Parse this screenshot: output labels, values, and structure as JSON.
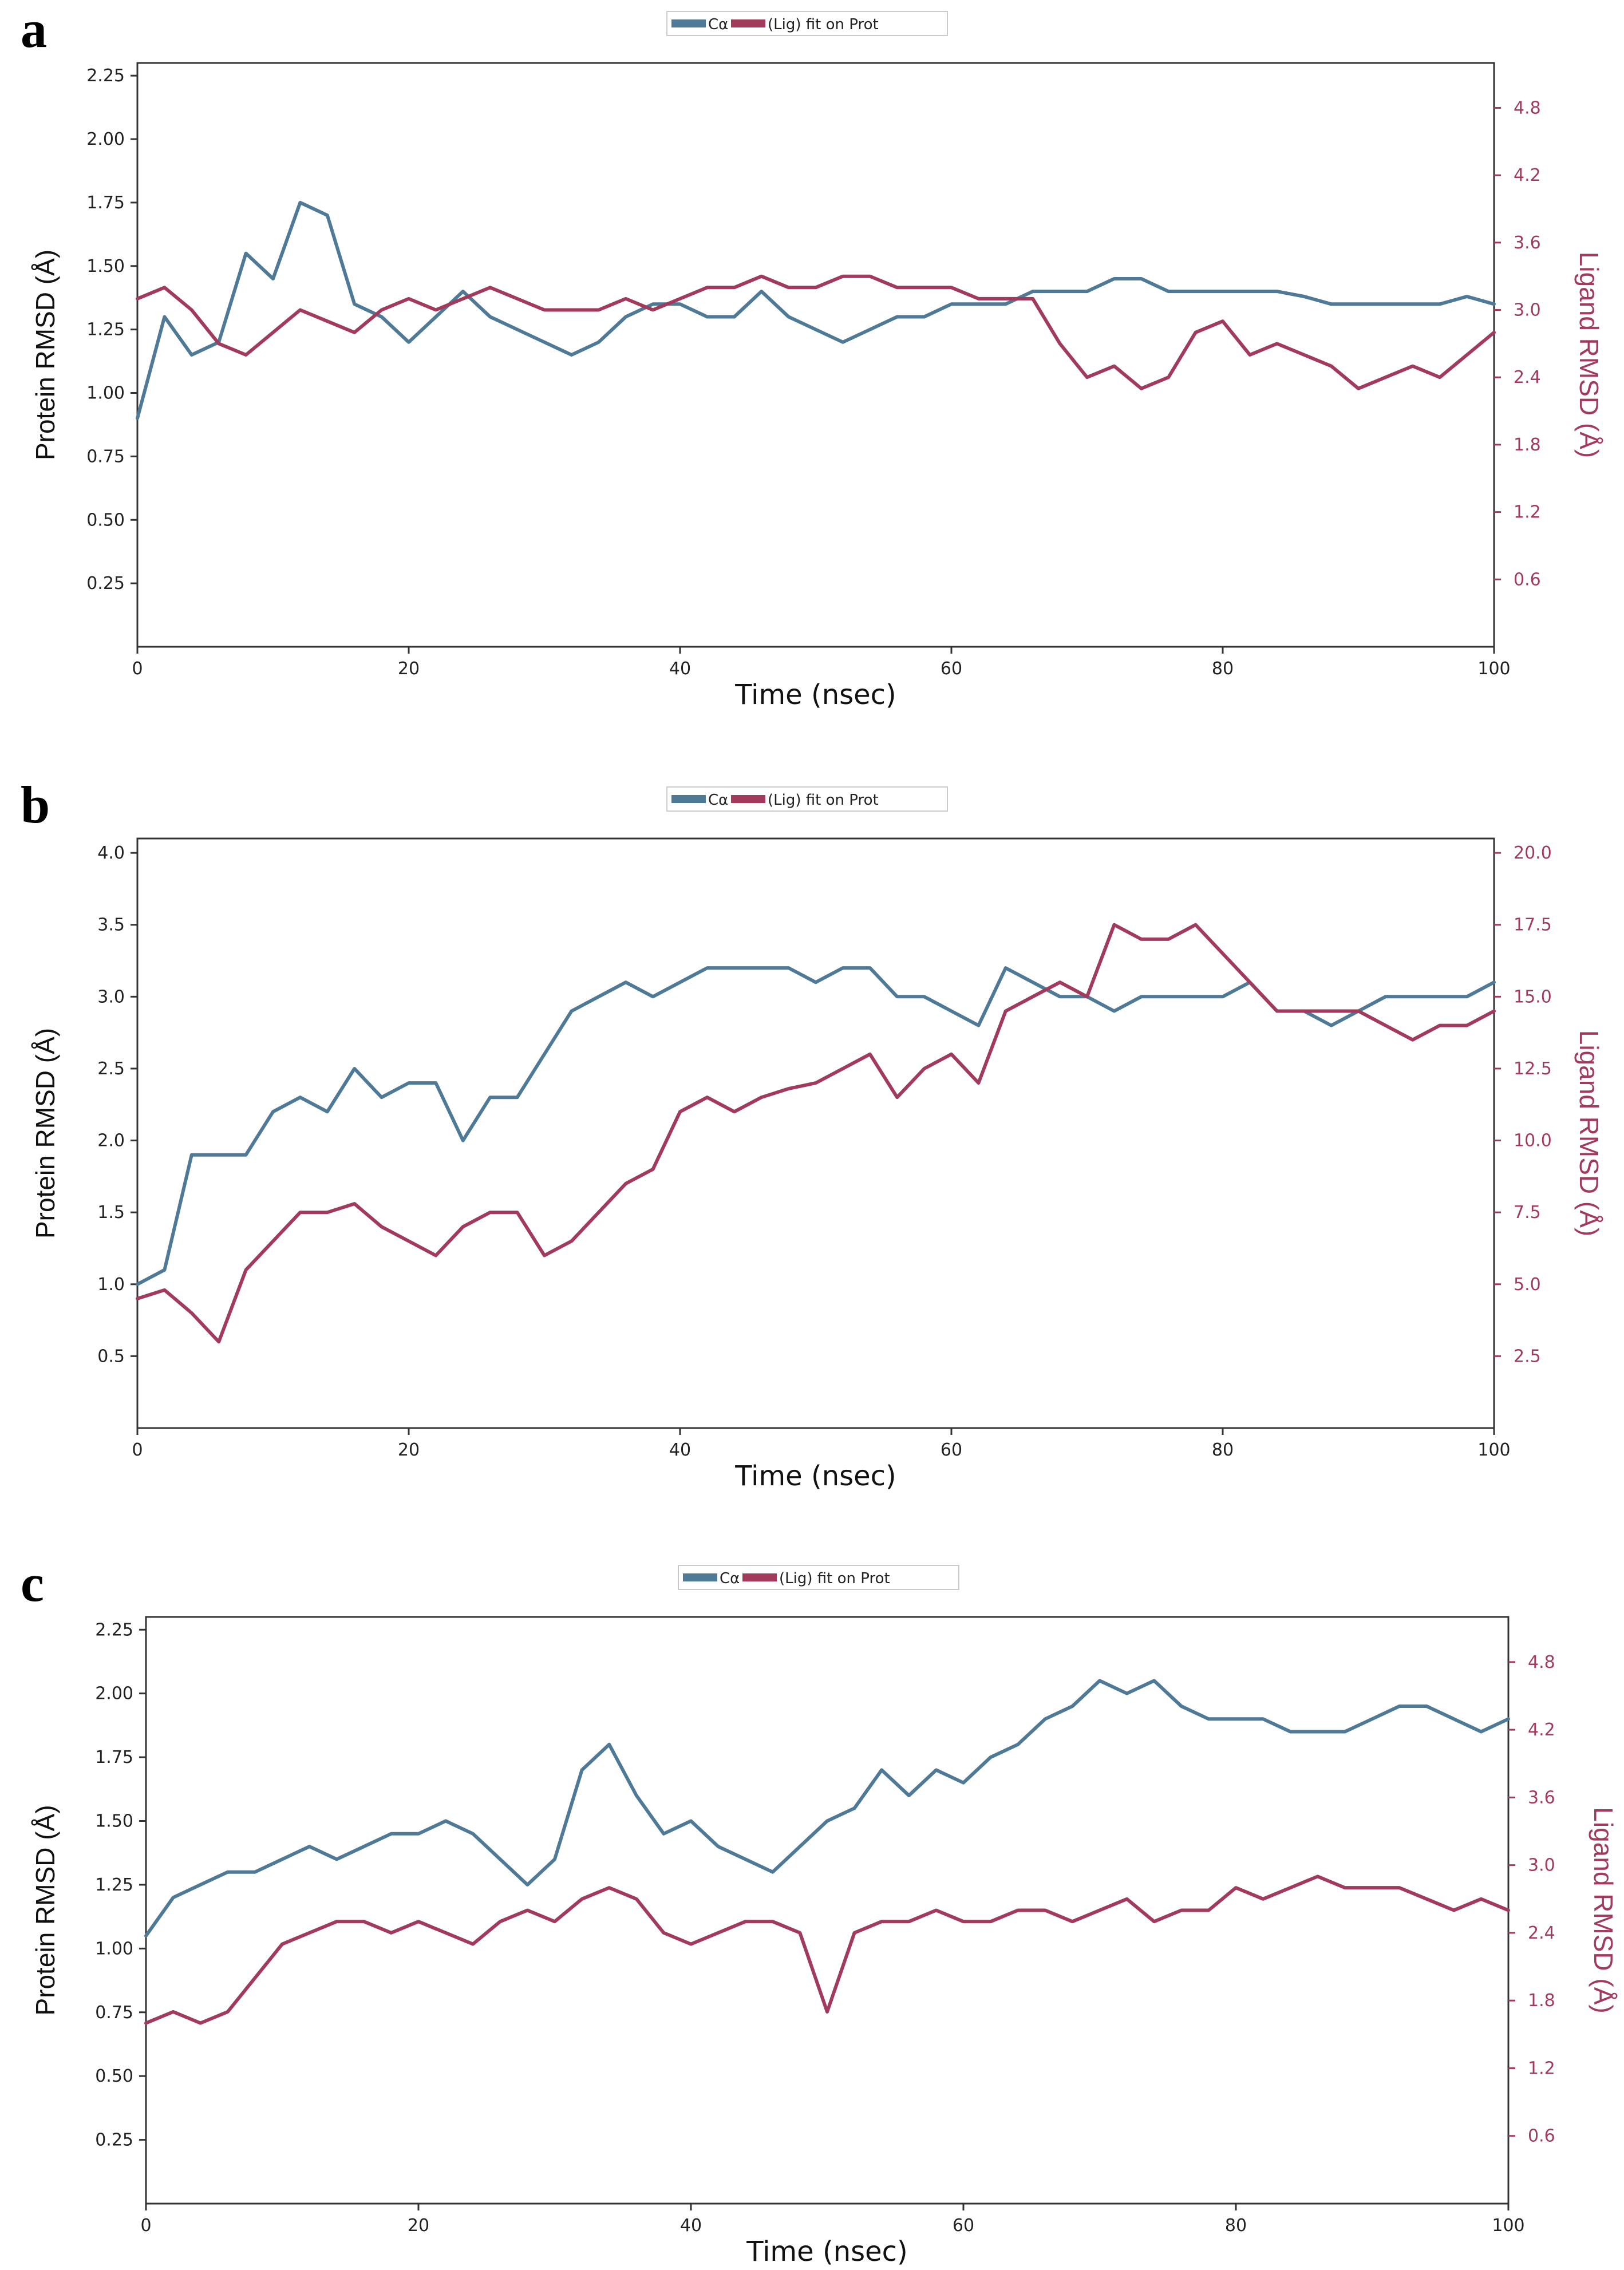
{
  "figure": {
    "panels": [
      {
        "letter": "a",
        "legend": {
          "series1_label": "Cα",
          "series2_label": "(Lig) fit on Prot"
        }
      },
      {
        "letter": "b",
        "legend": {
          "series1_label": "Cα",
          "series2_label": "(Lig) fit on Prot"
        }
      },
      {
        "letter": "c",
        "legend": {
          "series1_label": "Cα",
          "series2_label": "(Lig) fit on Prot"
        }
      }
    ]
  },
  "colors": {
    "protein": "#4f7a97",
    "ligand": "#a23a5c",
    "ligand_axis": "#a23a5c",
    "axis": "#333333"
  },
  "chart_data": [
    {
      "type": "line",
      "xlabel": "Time (nsec)",
      "ylabel_left": "Protein RMSD (Å)",
      "ylabel_right": "Ligand RMSD (Å)",
      "xlim": [
        0,
        100
      ],
      "ylim_left": [
        0,
        2.3
      ],
      "ylim_right": [
        0,
        5.2
      ],
      "x_ticks": [
        0,
        20,
        40,
        60,
        80,
        100
      ],
      "y_ticks_left": [
        "0.25",
        "0.50",
        "0.75",
        "1.00",
        "1.25",
        "1.50",
        "1.75",
        "2.00",
        "2.25"
      ],
      "y_ticks_right": [
        "0.6",
        "1.2",
        "1.8",
        "2.4",
        "3.0",
        "3.6",
        "4.2",
        "4.8"
      ],
      "series": [
        {
          "name": "Cα",
          "axis": "left",
          "x": [
            0,
            2,
            4,
            6,
            8,
            10,
            12,
            14,
            16,
            18,
            20,
            22,
            24,
            26,
            28,
            30,
            32,
            34,
            36,
            38,
            40,
            42,
            44,
            46,
            48,
            50,
            52,
            54,
            56,
            58,
            60,
            62,
            64,
            66,
            68,
            70,
            72,
            74,
            76,
            78,
            80,
            82,
            84,
            86,
            88,
            90,
            92,
            94,
            96,
            98,
            100
          ],
          "y": [
            0.9,
            1.3,
            1.15,
            1.2,
            1.55,
            1.45,
            1.75,
            1.7,
            1.35,
            1.3,
            1.2,
            1.3,
            1.4,
            1.3,
            1.25,
            1.2,
            1.15,
            1.2,
            1.3,
            1.35,
            1.35,
            1.3,
            1.3,
            1.4,
            1.3,
            1.25,
            1.2,
            1.25,
            1.3,
            1.3,
            1.35,
            1.35,
            1.35,
            1.4,
            1.4,
            1.4,
            1.45,
            1.45,
            1.4,
            1.4,
            1.4,
            1.4,
            1.4,
            1.38,
            1.35,
            1.35,
            1.35,
            1.35,
            1.35,
            1.38,
            1.35
          ]
        },
        {
          "name": "(Lig) fit on Prot",
          "axis": "right",
          "x": [
            0,
            2,
            4,
            6,
            8,
            10,
            12,
            14,
            16,
            18,
            20,
            22,
            24,
            26,
            28,
            30,
            32,
            34,
            36,
            38,
            40,
            42,
            44,
            46,
            48,
            50,
            52,
            54,
            56,
            58,
            60,
            62,
            64,
            66,
            68,
            70,
            72,
            74,
            76,
            78,
            80,
            82,
            84,
            86,
            88,
            90,
            92,
            94,
            96,
            98,
            100
          ],
          "y": [
            3.1,
            3.2,
            3.0,
            2.7,
            2.6,
            2.8,
            3.0,
            2.9,
            2.8,
            3.0,
            3.1,
            3.0,
            3.1,
            3.2,
            3.1,
            3.0,
            3.0,
            3.0,
            3.1,
            3.0,
            3.1,
            3.2,
            3.2,
            3.3,
            3.2,
            3.2,
            3.3,
            3.3,
            3.2,
            3.2,
            3.2,
            3.1,
            3.1,
            3.1,
            2.7,
            2.4,
            2.5,
            2.3,
            2.4,
            2.8,
            2.9,
            2.6,
            2.7,
            2.6,
            2.5,
            2.3,
            2.4,
            2.5,
            2.4,
            2.6,
            2.8
          ]
        }
      ]
    },
    {
      "type": "line",
      "xlabel": "Time (nsec)",
      "ylabel_left": "Protein RMSD (Å)",
      "ylabel_right": "Ligand RMSD (Å)",
      "xlim": [
        0,
        100
      ],
      "ylim_left": [
        0,
        4.1
      ],
      "ylim_right": [
        0,
        20.5
      ],
      "x_ticks": [
        0,
        20,
        40,
        60,
        80,
        100
      ],
      "y_ticks_left": [
        "0.5",
        "1.0",
        "1.5",
        "2.0",
        "2.5",
        "3.0",
        "3.5",
        "4.0"
      ],
      "y_ticks_right": [
        "2.5",
        "5.0",
        "7.5",
        "10.0",
        "12.5",
        "15.0",
        "17.5",
        "20.0"
      ],
      "series": [
        {
          "name": "Cα",
          "axis": "left",
          "x": [
            0,
            2,
            4,
            6,
            8,
            10,
            12,
            14,
            16,
            18,
            20,
            22,
            24,
            26,
            28,
            30,
            32,
            34,
            36,
            38,
            40,
            42,
            44,
            46,
            48,
            50,
            52,
            54,
            56,
            58,
            60,
            62,
            64,
            66,
            68,
            70,
            72,
            74,
            76,
            78,
            80,
            82,
            84,
            86,
            88,
            90,
            92,
            94,
            96,
            98,
            100
          ],
          "y": [
            1.0,
            1.1,
            1.9,
            1.9,
            1.9,
            2.2,
            2.3,
            2.2,
            2.5,
            2.3,
            2.4,
            2.4,
            2.0,
            2.3,
            2.3,
            2.6,
            2.9,
            3.0,
            3.1,
            3.0,
            3.1,
            3.2,
            3.2,
            3.2,
            3.2,
            3.1,
            3.2,
            3.2,
            3.0,
            3.0,
            2.9,
            2.8,
            3.2,
            3.1,
            3.0,
            3.0,
            2.9,
            3.0,
            3.0,
            3.0,
            3.0,
            3.1,
            2.9,
            2.9,
            2.8,
            2.9,
            3.0,
            3.0,
            3.0,
            3.0,
            3.1
          ]
        },
        {
          "name": "(Lig) fit on Prot",
          "axis": "right",
          "x": [
            0,
            2,
            4,
            6,
            8,
            10,
            12,
            14,
            16,
            18,
            20,
            22,
            24,
            26,
            28,
            30,
            32,
            34,
            36,
            38,
            40,
            42,
            44,
            46,
            48,
            50,
            52,
            54,
            56,
            58,
            60,
            62,
            64,
            66,
            68,
            70,
            72,
            74,
            76,
            78,
            80,
            82,
            84,
            86,
            88,
            90,
            92,
            94,
            96,
            98,
            100
          ],
          "y": [
            4.5,
            4.8,
            4.0,
            3.0,
            5.5,
            6.5,
            7.5,
            7.5,
            7.8,
            7.0,
            6.5,
            6.0,
            7.0,
            7.5,
            7.5,
            6.0,
            6.5,
            7.5,
            8.5,
            9.0,
            11.0,
            11.5,
            11.0,
            11.5,
            11.8,
            12.0,
            12.5,
            13.0,
            11.5,
            12.5,
            13.0,
            12.0,
            14.5,
            15.0,
            15.5,
            15.0,
            17.5,
            17.0,
            17.0,
            17.5,
            16.5,
            15.5,
            14.5,
            14.5,
            14.5,
            14.5,
            14.0,
            13.5,
            14.0,
            14.0,
            14.5
          ]
        }
      ]
    },
    {
      "type": "line",
      "xlabel": "Time (nsec)",
      "ylabel_left": "Protein RMSD (Å)",
      "ylabel_right": "Ligand RMSD (Å)",
      "xlim": [
        0,
        100
      ],
      "ylim_left": [
        0,
        2.3
      ],
      "ylim_right": [
        0,
        5.2
      ],
      "x_ticks": [
        0,
        20,
        40,
        60,
        80,
        100
      ],
      "y_ticks_left": [
        "0.25",
        "0.50",
        "0.75",
        "1.00",
        "1.25",
        "1.50",
        "1.75",
        "2.00",
        "2.25"
      ],
      "y_ticks_right": [
        "0.6",
        "1.2",
        "1.8",
        "2.4",
        "3.0",
        "3.6",
        "4.2",
        "4.8"
      ],
      "series": [
        {
          "name": "Cα",
          "axis": "left",
          "x": [
            0,
            2,
            4,
            6,
            8,
            10,
            12,
            14,
            16,
            18,
            20,
            22,
            24,
            26,
            28,
            30,
            32,
            34,
            36,
            38,
            40,
            42,
            44,
            46,
            48,
            50,
            52,
            54,
            56,
            58,
            60,
            62,
            64,
            66,
            68,
            70,
            72,
            74,
            76,
            78,
            80,
            82,
            84,
            86,
            88,
            90,
            92,
            94,
            96,
            98,
            100
          ],
          "y": [
            1.05,
            1.2,
            1.25,
            1.3,
            1.3,
            1.35,
            1.4,
            1.35,
            1.4,
            1.45,
            1.45,
            1.5,
            1.45,
            1.35,
            1.25,
            1.35,
            1.7,
            1.8,
            1.6,
            1.45,
            1.5,
            1.4,
            1.35,
            1.3,
            1.4,
            1.5,
            1.55,
            1.7,
            1.6,
            1.7,
            1.65,
            1.75,
            1.8,
            1.9,
            1.95,
            2.05,
            2.0,
            2.05,
            1.95,
            1.9,
            1.9,
            1.9,
            1.85,
            1.85,
            1.85,
            1.9,
            1.95,
            1.95,
            1.9,
            1.85,
            1.9
          ]
        },
        {
          "name": "(Lig) fit on Prot",
          "axis": "right",
          "x": [
            0,
            2,
            4,
            6,
            8,
            10,
            12,
            14,
            16,
            18,
            20,
            22,
            24,
            26,
            28,
            30,
            32,
            34,
            36,
            38,
            40,
            42,
            44,
            46,
            48,
            50,
            52,
            54,
            56,
            58,
            60,
            62,
            64,
            66,
            68,
            70,
            72,
            74,
            76,
            78,
            80,
            82,
            84,
            86,
            88,
            90,
            92,
            94,
            96,
            98,
            100
          ],
          "y": [
            1.6,
            1.7,
            1.6,
            1.7,
            2.0,
            2.3,
            2.4,
            2.5,
            2.5,
            2.4,
            2.5,
            2.4,
            2.3,
            2.5,
            2.6,
            2.5,
            2.7,
            2.8,
            2.7,
            2.4,
            2.3,
            2.4,
            2.5,
            2.5,
            2.4,
            1.7,
            2.4,
            2.5,
            2.5,
            2.6,
            2.5,
            2.5,
            2.6,
            2.6,
            2.5,
            2.6,
            2.7,
            2.5,
            2.6,
            2.6,
            2.8,
            2.7,
            2.8,
            2.9,
            2.8,
            2.8,
            2.8,
            2.7,
            2.6,
            2.7,
            2.6
          ]
        }
      ]
    }
  ]
}
